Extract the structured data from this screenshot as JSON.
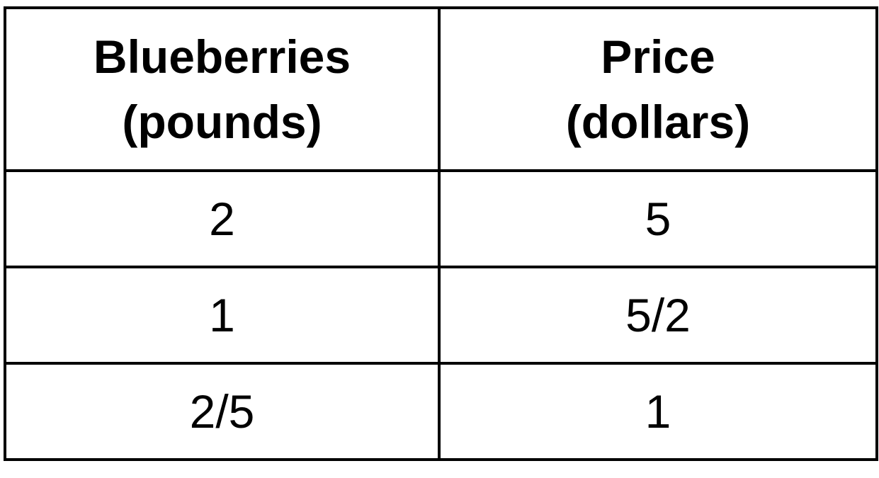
{
  "table": {
    "headers": [
      {
        "line1": "Blueberries",
        "line2": "(pounds)"
      },
      {
        "line1": "Price",
        "line2": "(dollars)"
      }
    ],
    "rows": [
      [
        "2",
        "5"
      ],
      [
        "1",
        "5/2"
      ],
      [
        "2/5",
        "1"
      ]
    ]
  },
  "colors": {
    "text": "#000000",
    "border": "#000000",
    "background": "#ffffff"
  }
}
